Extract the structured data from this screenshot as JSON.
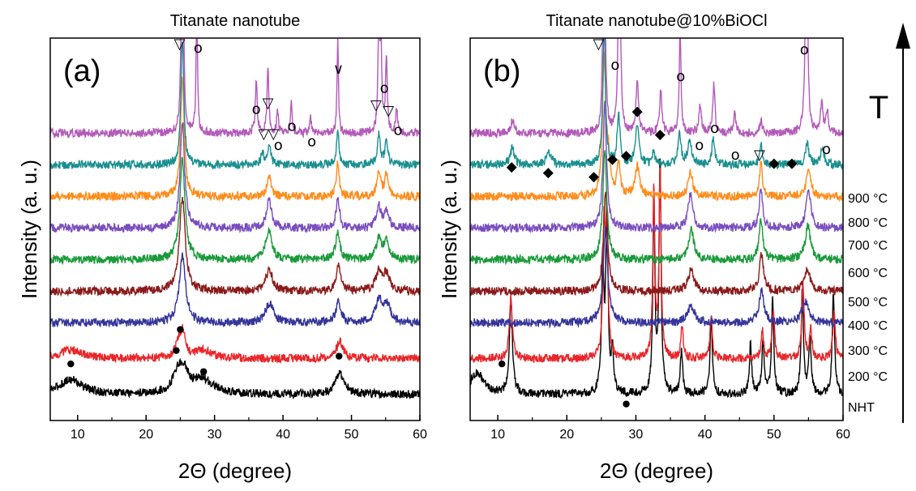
{
  "chart_data": [
    {
      "type": "line",
      "panel_label": "(a)",
      "title": "Titanate nanotube",
      "xlabel": "2Θ (degree)",
      "ylabel": "Intensity (a. u.)",
      "xlim": [
        6,
        60
      ],
      "x_ticks": [
        "10",
        "20",
        "30",
        "40",
        "50",
        "60"
      ],
      "grid": false,
      "series": [
        {
          "name": "NHT",
          "color": "#000000",
          "offset": 0.0,
          "peaks": [
            [
              9,
              0.035,
              2.0
            ],
            [
              24.5,
              0.04,
              0.8
            ],
            [
              25.5,
              0.05,
              0.8
            ],
            [
              28.2,
              0.035,
              1.8
            ],
            [
              48.3,
              0.05,
              0.8
            ]
          ]
        },
        {
          "name": "200 °C",
          "color": "#e8262a",
          "offset": 0.085,
          "peaks": [
            [
              9,
              0.02,
              2.0
            ],
            [
              24.8,
              0.04,
              0.5
            ],
            [
              25.4,
              0.05,
              0.4
            ],
            [
              28.3,
              0.02,
              1.5
            ],
            [
              48.3,
              0.04,
              0.6
            ]
          ]
        },
        {
          "name": "300 °C",
          "color": "#34349a",
          "offset": 0.17,
          "peaks": [
            [
              25.3,
              0.16,
              0.55
            ],
            [
              38.0,
              0.045,
              0.7
            ],
            [
              48.1,
              0.05,
              0.45
            ],
            [
              54.0,
              0.05,
              0.6
            ],
            [
              55.2,
              0.04,
              0.6
            ]
          ]
        },
        {
          "name": "400 °C",
          "color": "#8b1a1a",
          "offset": 0.245,
          "peaks": [
            [
              25.3,
              0.22,
              0.5
            ],
            [
              38.0,
              0.05,
              0.6
            ],
            [
              48.1,
              0.06,
              0.4
            ],
            [
              54.0,
              0.045,
              0.55
            ],
            [
              55.1,
              0.04,
              0.5
            ]
          ]
        },
        {
          "name": "500 °C",
          "color": "#1a9a3a",
          "offset": 0.32,
          "peaks": [
            [
              25.3,
              0.24,
              0.45
            ],
            [
              37.8,
              0.03,
              0.5
            ],
            [
              38.0,
              0.04,
              0.5
            ],
            [
              48.0,
              0.07,
              0.35
            ],
            [
              54.0,
              0.05,
              0.45
            ],
            [
              55.1,
              0.04,
              0.45
            ]
          ]
        },
        {
          "name": "600 °C",
          "color": "#7a4dbf",
          "offset": 0.395,
          "peaks": [
            [
              25.3,
              0.25,
              0.4
            ],
            [
              37.8,
              0.03,
              0.4
            ],
            [
              38.1,
              0.04,
              0.4
            ],
            [
              48.0,
              0.07,
              0.3
            ],
            [
              54.0,
              0.05,
              0.4
            ],
            [
              55.1,
              0.04,
              0.4
            ]
          ]
        },
        {
          "name": "700 °C",
          "color": "#ff8c1a",
          "offset": 0.47,
          "peaks": [
            [
              25.3,
              0.28,
              0.32
            ],
            [
              38.0,
              0.05,
              0.35
            ],
            [
              48.0,
              0.08,
              0.25
            ],
            [
              54.0,
              0.06,
              0.3
            ],
            [
              55.1,
              0.05,
              0.3
            ]
          ]
        },
        {
          "name": "800 °C",
          "color": "#1a8f8f",
          "offset": 0.545,
          "peaks": [
            [
              25.3,
              0.3,
              0.25
            ],
            [
              37.0,
              0.03,
              0.25
            ],
            [
              38.0,
              0.05,
              0.25
            ],
            [
              48.0,
              0.09,
              0.2
            ],
            [
              54.0,
              0.07,
              0.25
            ],
            [
              55.1,
              0.06,
              0.25
            ]
          ]
        },
        {
          "name": "900 °C",
          "color": "#b25ab8",
          "offset": 0.62,
          "peaks": [
            [
              25.3,
              0.75,
              0.15
            ],
            [
              27.4,
              0.32,
              0.12
            ],
            [
              36.1,
              0.13,
              0.15
            ],
            [
              37.8,
              0.16,
              0.15
            ],
            [
              39.2,
              0.05,
              0.15
            ],
            [
              41.2,
              0.07,
              0.15
            ],
            [
              44.0,
              0.04,
              0.15
            ],
            [
              48.0,
              0.22,
              0.12
            ],
            [
              54.0,
              0.24,
              0.15
            ],
            [
              54.3,
              0.2,
              0.15
            ],
            [
              55.1,
              0.18,
              0.15
            ],
            [
              56.6,
              0.06,
              0.15
            ]
          ]
        }
      ],
      "annotations": [
        {
          "text": "▽",
          "x": 24.9,
          "y": 0.985
        },
        {
          "text": "o",
          "x": 27.6,
          "y": 0.975
        },
        {
          "text": "o",
          "x": 36.1,
          "y": 0.815
        },
        {
          "text": "▽",
          "x": 37.8,
          "y": 0.83
        },
        {
          "text": "▽",
          "x": 37.2,
          "y": 0.75
        },
        {
          "text": "▽",
          "x": 38.6,
          "y": 0.75
        },
        {
          "text": "o",
          "x": 39.3,
          "y": 0.72
        },
        {
          "text": "o",
          "x": 41.3,
          "y": 0.77
        },
        {
          "text": "o",
          "x": 44.2,
          "y": 0.73
        },
        {
          "text": "∨",
          "x": 48.1,
          "y": 0.92
        },
        {
          "text": "o",
          "x": 54.8,
          "y": 0.87
        },
        {
          "text": "▽",
          "x": 53.6,
          "y": 0.825
        },
        {
          "text": "▽",
          "x": 55.4,
          "y": 0.81
        },
        {
          "text": "o",
          "x": 56.8,
          "y": 0.76
        },
        {
          "text": "●",
          "x": 9.0,
          "y": 0.155
        },
        {
          "text": "●",
          "x": 24.4,
          "y": 0.19
        },
        {
          "text": "●",
          "x": 25.0,
          "y": 0.245
        },
        {
          "text": "●",
          "x": 28.4,
          "y": 0.135
        },
        {
          "text": "●",
          "x": 48.2,
          "y": 0.175
        }
      ]
    },
    {
      "type": "line",
      "panel_label": "(b)",
      "title": "Titanate nanotube@10%BiOCl",
      "xlabel": "2Θ (degree)",
      "ylabel": "Intensity (a. u.)",
      "xlim": [
        6,
        60
      ],
      "x_ticks": [
        "10",
        "20",
        "30",
        "40",
        "50",
        "60"
      ],
      "grid": false,
      "series": [
        {
          "name": "NHT",
          "color": "#000000",
          "offset": 0.0,
          "peaks": [
            [
              7,
              0.05,
              1.2
            ],
            [
              11.9,
              0.23,
              0.25
            ],
            [
              25.2,
              0.3,
              0.2
            ],
            [
              25.8,
              0.42,
              0.2
            ],
            [
              26.6,
              0.1,
              0.2
            ],
            [
              32.6,
              0.45,
              0.18
            ],
            [
              33.5,
              0.55,
              0.18
            ],
            [
              36.6,
              0.1,
              0.2
            ],
            [
              40.9,
              0.18,
              0.2
            ],
            [
              46.6,
              0.12,
              0.2
            ],
            [
              48.4,
              0.12,
              0.2
            ],
            [
              49.8,
              0.22,
              0.2
            ],
            [
              54.1,
              0.25,
              0.2
            ],
            [
              55.2,
              0.14,
              0.2
            ],
            [
              58.6,
              0.24,
              0.2
            ]
          ]
        },
        {
          "name": "200 °C",
          "color": "#e8262a",
          "offset": 0.085,
          "peaks": [
            [
              11.9,
              0.15,
              0.25
            ],
            [
              25.4,
              0.3,
              0.2
            ],
            [
              25.8,
              0.3,
              0.2
            ],
            [
              32.6,
              0.4,
              0.18
            ],
            [
              33.5,
              0.45,
              0.18
            ],
            [
              36.7,
              0.08,
              0.2
            ],
            [
              40.9,
              0.1,
              0.2
            ],
            [
              48.3,
              0.07,
              0.2
            ],
            [
              49.9,
              0.12,
              0.2
            ],
            [
              54.2,
              0.18,
              0.2
            ],
            [
              55.3,
              0.07,
              0.2
            ],
            [
              58.7,
              0.12,
              0.2
            ]
          ]
        },
        {
          "name": "300 °C",
          "color": "#34349a",
          "offset": 0.17,
          "peaks": [
            [
              25.6,
              0.22,
              0.4
            ],
            [
              38.0,
              0.04,
              0.6
            ],
            [
              48.2,
              0.08,
              0.4
            ],
            [
              54.5,
              0.05,
              0.6
            ]
          ]
        },
        {
          "name": "400 °C",
          "color": "#8b1a1a",
          "offset": 0.245,
          "peaks": [
            [
              25.6,
              0.24,
              0.35
            ],
            [
              38.0,
              0.05,
              0.5
            ],
            [
              48.2,
              0.09,
              0.35
            ],
            [
              54.8,
              0.05,
              0.55
            ]
          ]
        },
        {
          "name": "500 °C",
          "color": "#1a9a3a",
          "offset": 0.32,
          "peaks": [
            [
              25.5,
              0.26,
              0.35
            ],
            [
              38.0,
              0.07,
              0.45
            ],
            [
              48.1,
              0.1,
              0.3
            ],
            [
              54.9,
              0.08,
              0.45
            ]
          ]
        },
        {
          "name": "600 °C",
          "color": "#7a4dbf",
          "offset": 0.395,
          "peaks": [
            [
              25.5,
              0.3,
              0.3
            ],
            [
              37.9,
              0.08,
              0.4
            ],
            [
              48.1,
              0.1,
              0.28
            ],
            [
              55.0,
              0.09,
              0.4
            ]
          ]
        },
        {
          "name": "700 °C",
          "color": "#ff8c1a",
          "offset": 0.47,
          "peaks": [
            [
              25.4,
              0.32,
              0.28
            ],
            [
              26.0,
              0.08,
              0.3
            ],
            [
              27.5,
              0.07,
              0.3
            ],
            [
              30.2,
              0.07,
              0.4
            ],
            [
              37.9,
              0.06,
              0.35
            ],
            [
              48.1,
              0.08,
              0.25
            ],
            [
              55.0,
              0.07,
              0.35
            ]
          ]
        },
        {
          "name": "800 °C",
          "color": "#1a8f8f",
          "offset": 0.545,
          "peaks": [
            [
              12.1,
              0.04,
              0.35
            ],
            [
              17.4,
              0.03,
              0.4
            ],
            [
              25.4,
              0.33,
              0.22
            ],
            [
              27.5,
              0.12,
              0.25
            ],
            [
              30.2,
              0.1,
              0.3
            ],
            [
              32.6,
              0.03,
              0.25
            ],
            [
              36.3,
              0.08,
              0.25
            ],
            [
              37.8,
              0.06,
              0.3
            ],
            [
              41.2,
              0.06,
              0.25
            ],
            [
              48.1,
              0.05,
              0.22
            ],
            [
              54.8,
              0.05,
              0.3
            ],
            [
              57.0,
              0.04,
              0.3
            ]
          ]
        },
        {
          "name": "900 °C",
          "color": "#b25ab8",
          "offset": 0.62,
          "peaks": [
            [
              12.1,
              0.03,
              0.3
            ],
            [
              25.4,
              0.75,
              0.15
            ],
            [
              27.6,
              0.7,
              0.15
            ],
            [
              30.2,
              0.13,
              0.2
            ],
            [
              33.6,
              0.1,
              0.2
            ],
            [
              36.4,
              0.25,
              0.15
            ],
            [
              39.3,
              0.07,
              0.2
            ],
            [
              41.3,
              0.12,
              0.18
            ],
            [
              44.3,
              0.05,
              0.2
            ],
            [
              48.1,
              0.03,
              0.2
            ],
            [
              54.7,
              0.75,
              0.15
            ],
            [
              56.9,
              0.07,
              0.2
            ],
            [
              57.7,
              0.05,
              0.2
            ]
          ]
        }
      ],
      "annotations": [
        {
          "text": "▽",
          "x": 24.6,
          "y": 0.985
        },
        {
          "text": "o",
          "x": 27.0,
          "y": 0.93
        },
        {
          "text": "o",
          "x": 36.5,
          "y": 0.9
        },
        {
          "text": "o",
          "x": 54.4,
          "y": 0.97
        },
        {
          "text": "◆",
          "x": 12.0,
          "y": 0.665
        },
        {
          "text": "◆",
          "x": 17.3,
          "y": 0.65
        },
        {
          "text": "◆",
          "x": 23.9,
          "y": 0.64
        },
        {
          "text": "◆",
          "x": 26.6,
          "y": 0.685
        },
        {
          "text": "◆",
          "x": 28.6,
          "y": 0.695
        },
        {
          "text": "◆",
          "x": 30.2,
          "y": 0.81
        },
        {
          "text": "◆",
          "x": 33.5,
          "y": 0.75
        },
        {
          "text": "o",
          "x": 39.2,
          "y": 0.72
        },
        {
          "text": "o",
          "x": 41.4,
          "y": 0.765
        },
        {
          "text": "o",
          "x": 44.4,
          "y": 0.695
        },
        {
          "text": "▽",
          "x": 47.9,
          "y": 0.695
        },
        {
          "text": "◆",
          "x": 50.0,
          "y": 0.675
        },
        {
          "text": "◆",
          "x": 52.6,
          "y": 0.675
        },
        {
          "text": "o",
          "x": 57.6,
          "y": 0.71
        },
        {
          "text": "●",
          "x": 10.6,
          "y": 0.155
        },
        {
          "text": "●",
          "x": 28.6,
          "y": 0.05
        }
      ]
    }
  ],
  "temperature_arrow": {
    "label": "T"
  },
  "sample_labels": [
    "900 °C",
    "800 °C",
    "700 °C",
    "600 °C",
    "500 °C",
    "400 °C",
    "300 °C",
    "200 °C",
    "NHT"
  ]
}
